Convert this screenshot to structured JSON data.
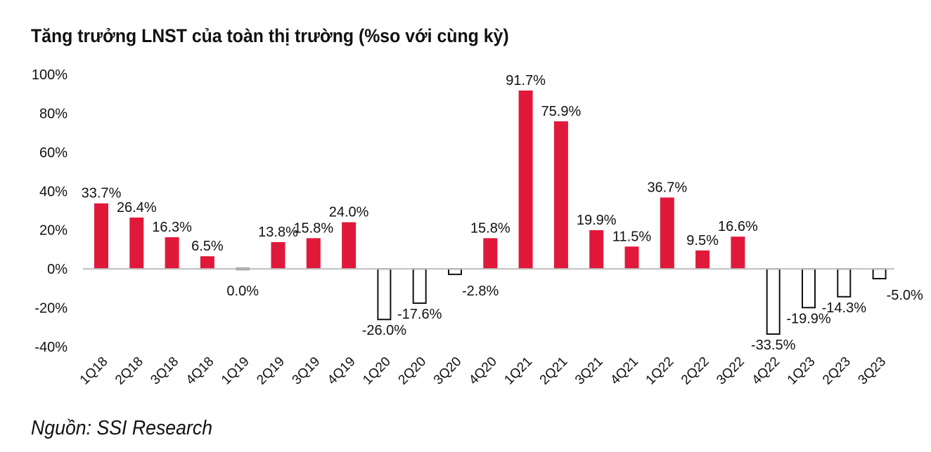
{
  "title": "Tăng trưởng LNST của toàn thị trường (%so với cùng kỳ)",
  "source": "Nguồn: SSI Research",
  "chart_data": {
    "type": "bar",
    "categories": [
      "1Q18",
      "2Q18",
      "3Q18",
      "4Q18",
      "1Q19",
      "2Q19",
      "3Q19",
      "4Q19",
      "1Q20",
      "2Q20",
      "3Q20",
      "4Q20",
      "1Q21",
      "2Q21",
      "3Q21",
      "4Q21",
      "1Q22",
      "2Q22",
      "3Q22",
      "4Q22",
      "1Q23",
      "2Q23",
      "3Q23"
    ],
    "values": [
      33.7,
      26.4,
      16.3,
      6.5,
      0.0,
      13.8,
      15.8,
      24.0,
      -26.0,
      -17.6,
      -2.8,
      15.8,
      91.7,
      75.9,
      19.9,
      11.5,
      36.7,
      9.5,
      16.6,
      -33.5,
      -19.9,
      -14.3,
      -5.0
    ],
    "data_labels": [
      "33.7%",
      "26.4%",
      "16.3%",
      "6.5%",
      "0.0%",
      "13.8%",
      "15.8%",
      "24.0%",
      "-26.0%",
      "-17.6%",
      "-2.8%",
      "15.8%",
      "91.7%",
      "75.9%",
      "19.9%",
      "11.5%",
      "36.7%",
      "9.5%",
      "16.6%",
      "-33.5%",
      "-19.9%",
      "-14.3%",
      "-5.0%"
    ],
    "yticks": [
      "100%",
      "80%",
      "60%",
      "40%",
      "20%",
      "0%",
      "-20%",
      "-40%"
    ],
    "ytick_values": [
      100,
      80,
      60,
      40,
      20,
      0,
      -20,
      -40
    ],
    "ylim": [
      -40,
      100
    ],
    "xlabel": "",
    "ylabel": "",
    "grid": false,
    "colors": {
      "positive": "#e0193a",
      "negative_fill": "#ffffff",
      "negative_stroke": "#111111",
      "zero_bar": "#888888",
      "axis": "#bfbfbf"
    }
  }
}
